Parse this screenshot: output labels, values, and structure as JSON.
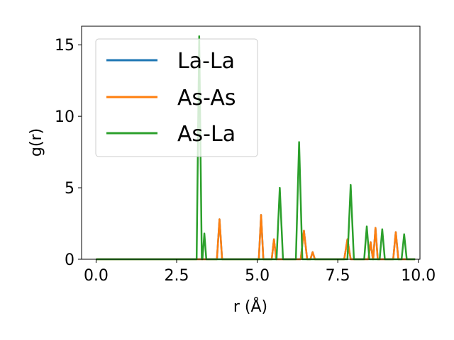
{
  "chart_data": {
    "type": "line",
    "xlabel": "r (Å)",
    "ylabel": "g(r)",
    "xlim": [
      -0.45,
      10.05
    ],
    "ylim": [
      0,
      16.3
    ],
    "xticks": [
      0.0,
      2.5,
      5.0,
      7.5,
      10.0
    ],
    "xtick_labels": [
      "0.0",
      "2.5",
      "5.0",
      "7.5",
      "10.0"
    ],
    "yticks": [
      0,
      5,
      10,
      15
    ],
    "ytick_labels": [
      "0",
      "5",
      "10",
      "15"
    ],
    "grid": false,
    "legend_position": "top-left",
    "series": [
      {
        "name": "La-La",
        "color": "#1f77b4",
        "x": [
          0.0,
          3.75,
          3.83,
          3.91,
          5.05,
          5.12,
          5.19,
          5.45,
          5.52,
          5.59,
          6.35,
          6.45,
          6.55,
          6.65,
          6.72,
          6.79,
          7.7,
          7.8,
          7.9,
          8.45,
          8.52,
          8.59,
          8.6,
          8.67,
          8.74,
          9.22,
          9.3,
          9.38,
          9.9
        ],
        "y": [
          0,
          0,
          2.8,
          0,
          0,
          3.1,
          0,
          0,
          1.4,
          0,
          0,
          2.0,
          0,
          0,
          0.5,
          0,
          0,
          1.4,
          0,
          0,
          1.2,
          0,
          0,
          2.2,
          0,
          0,
          1.9,
          0,
          0
        ]
      },
      {
        "name": "As-As",
        "color": "#ff7f0e",
        "x": [
          0.0,
          3.75,
          3.83,
          3.91,
          5.05,
          5.12,
          5.19,
          5.45,
          5.52,
          5.59,
          6.35,
          6.45,
          6.55,
          6.65,
          6.72,
          6.79,
          7.7,
          7.8,
          7.9,
          8.45,
          8.52,
          8.59,
          8.6,
          8.67,
          8.74,
          9.22,
          9.3,
          9.38,
          9.9
        ],
        "y": [
          0,
          0,
          2.8,
          0,
          0,
          3.1,
          0,
          0,
          1.4,
          0,
          0,
          2.0,
          0,
          0,
          0.5,
          0,
          0,
          1.4,
          0,
          0,
          1.2,
          0,
          0,
          2.2,
          0,
          0,
          1.9,
          0,
          0
        ]
      },
      {
        "name": "As-La",
        "color": "#2ca02c",
        "x": [
          0.0,
          3.12,
          3.2,
          3.28,
          3.3,
          3.36,
          3.42,
          5.6,
          5.7,
          5.8,
          6.2,
          6.3,
          6.4,
          7.8,
          7.9,
          8.0,
          8.32,
          8.4,
          8.48,
          8.8,
          8.88,
          8.96,
          9.48,
          9.56,
          9.64,
          9.9
        ],
        "y": [
          0,
          0,
          15.6,
          0,
          0,
          1.8,
          0,
          0,
          5.0,
          0,
          0,
          8.2,
          0,
          0,
          5.2,
          0,
          0,
          2.3,
          0,
          0,
          2.1,
          0,
          0,
          1.75,
          0,
          0
        ]
      }
    ]
  }
}
